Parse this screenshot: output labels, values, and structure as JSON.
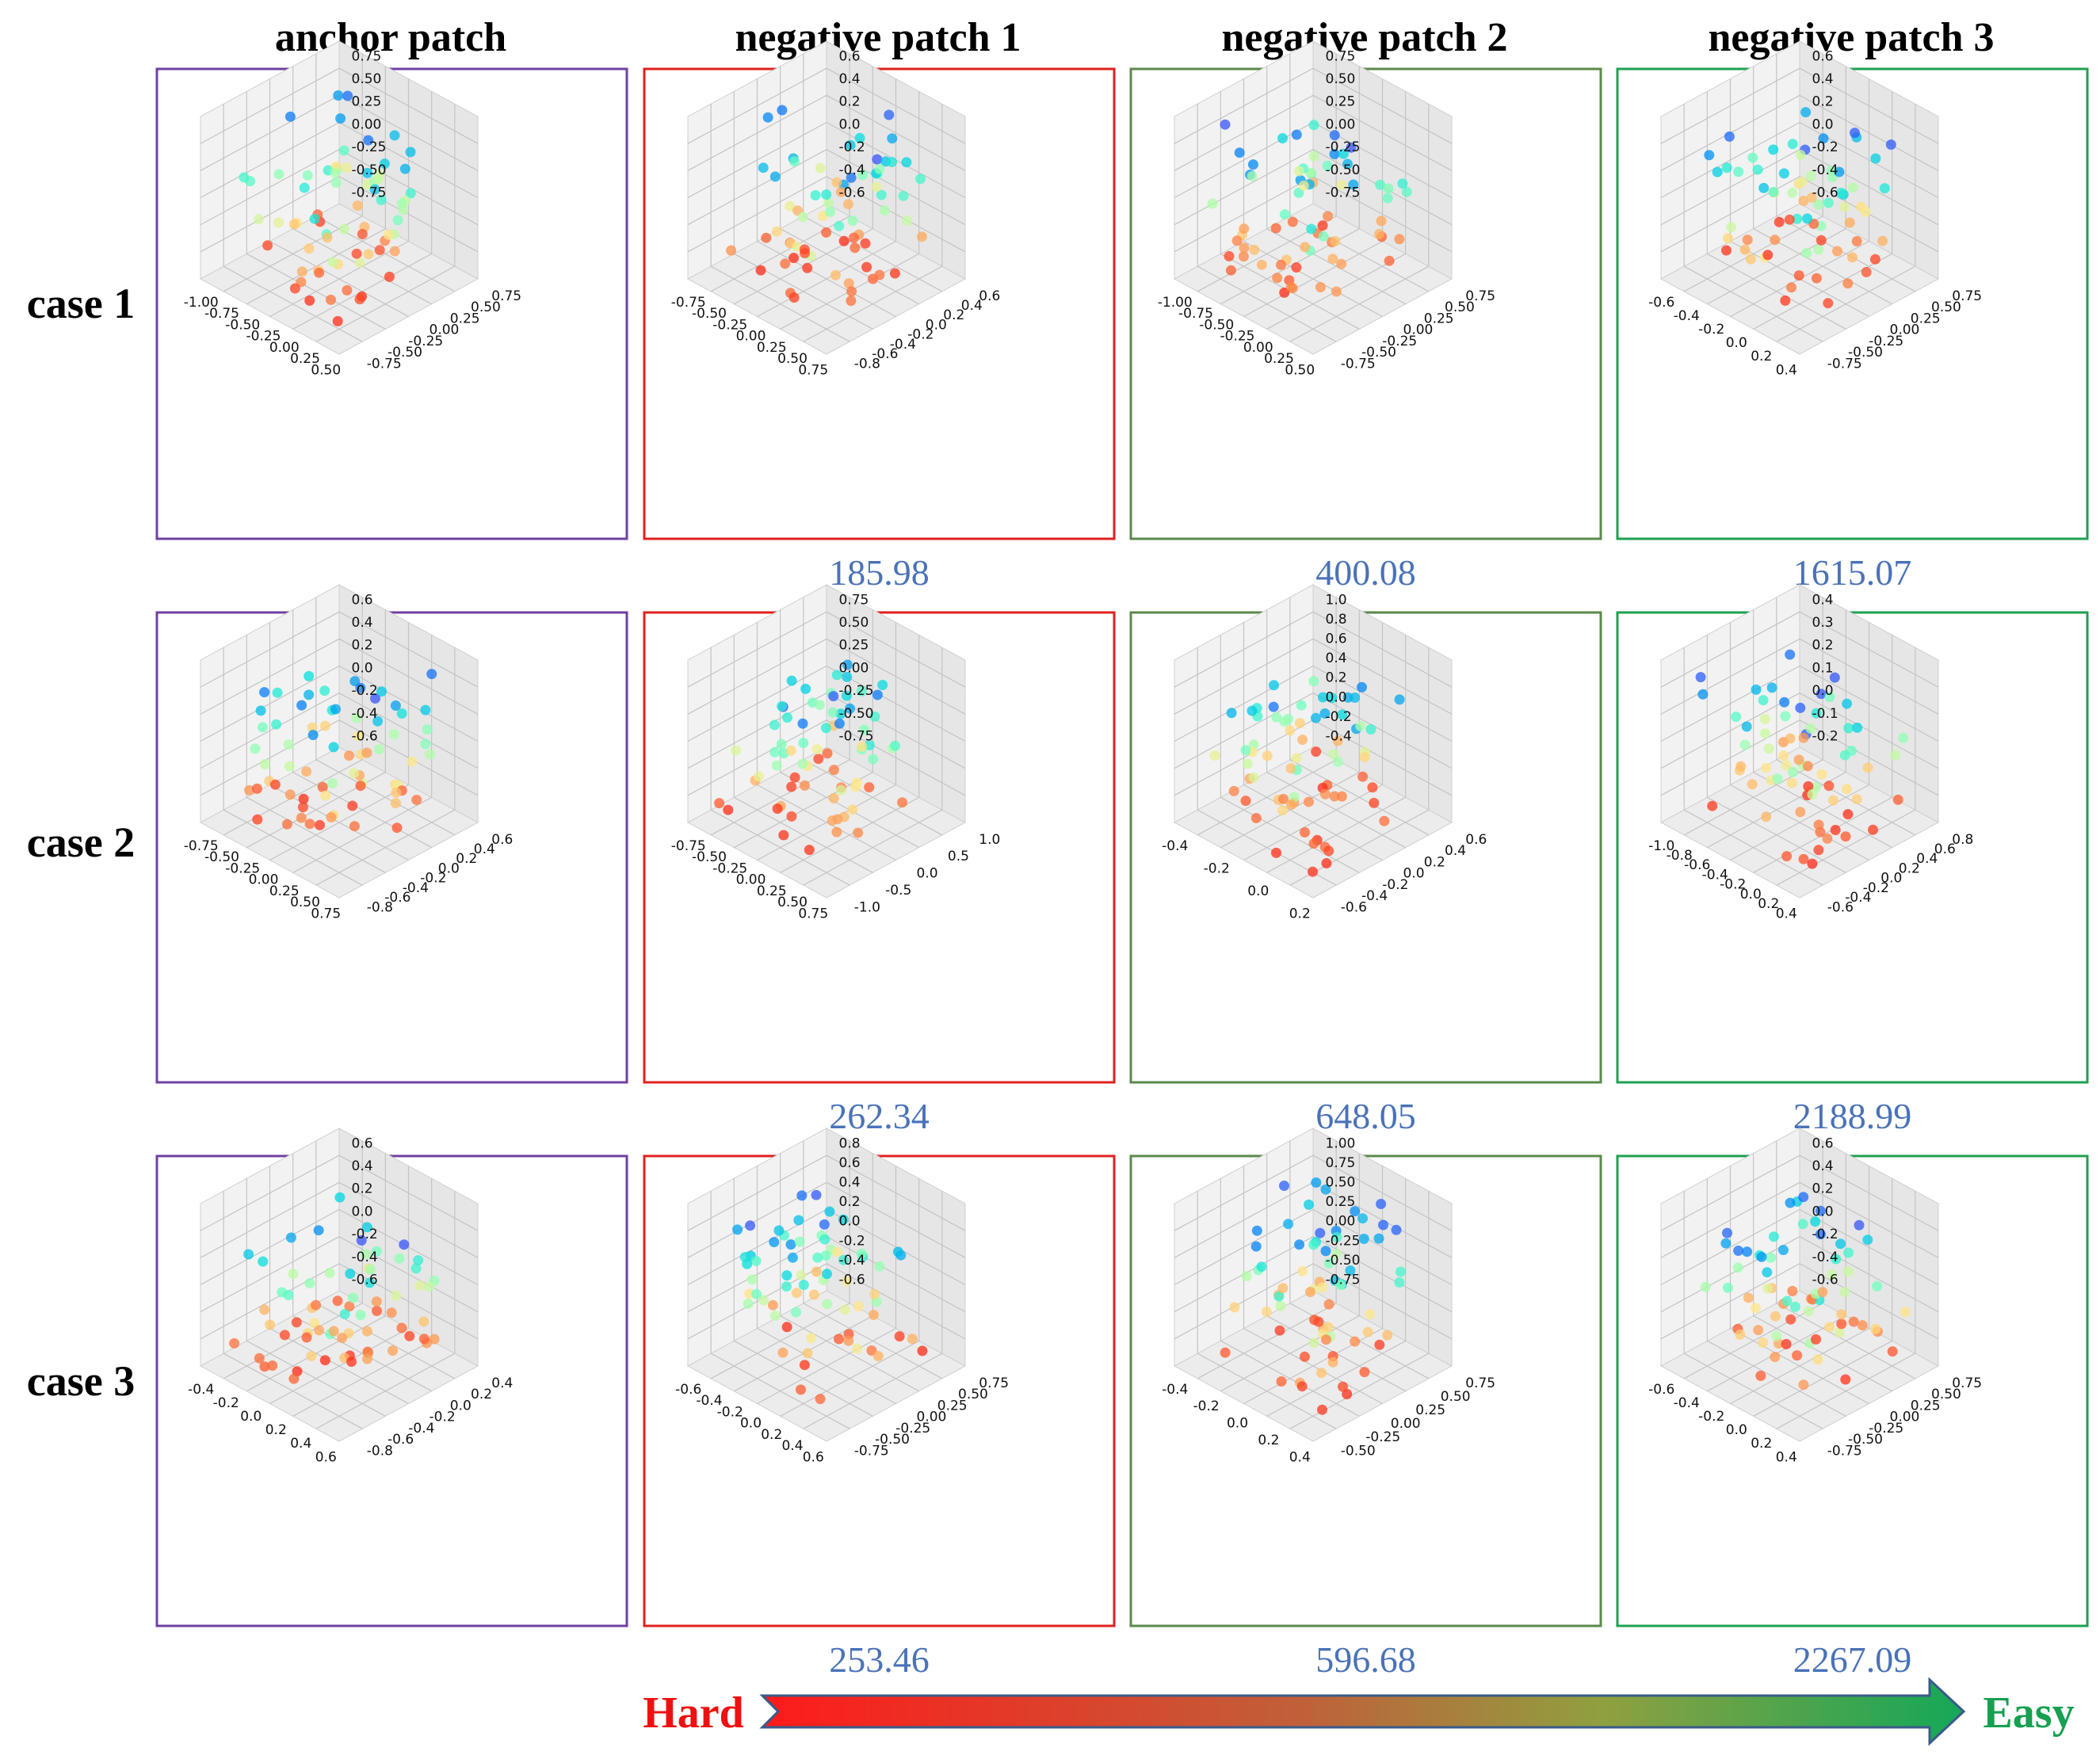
{
  "columns": [
    "anchor patch",
    "negative patch 1",
    "negative patch 2",
    "negative patch 3"
  ],
  "rows": [
    "case 1",
    "case 2",
    "case 3"
  ],
  "border_colors": {
    "anchor": "#7040a0",
    "neg1": "#e02020",
    "neg2": "#5a8a4a",
    "neg3": "#1ea050"
  },
  "arrow": {
    "left_label": "Hard",
    "right_label": "Easy",
    "left_color": "#ee1111",
    "right_color": "#16a050"
  },
  "value_color": "#4a72b8",
  "chart_data": [
    {
      "type": "scatter",
      "row": "case 1",
      "column": "anchor patch",
      "x_ticks": [
        "-1.00",
        "-0.75",
        "-0.50",
        "-0.25",
        "0.00",
        "0.25",
        "0.50"
      ],
      "y_ticks": [
        "-0.75",
        "-0.50",
        "-0.25",
        "0.00",
        "0.25",
        "0.50",
        "0.75"
      ],
      "z_ticks": [
        "-0.75",
        "-0.50",
        "-0.25",
        "0.00",
        "0.25",
        "0.50",
        "0.75"
      ],
      "value": ""
    },
    {
      "type": "scatter",
      "row": "case 1",
      "column": "negative patch 1",
      "x_ticks": [
        "-0.75",
        "-0.50",
        "-0.25",
        "0.00",
        "0.25",
        "0.50",
        "0.75"
      ],
      "y_ticks": [
        "-0.8",
        "-0.6",
        "-0.4",
        "-0.2",
        "0.0",
        "0.2",
        "0.4",
        "0.6"
      ],
      "z_ticks": [
        "-0.6",
        "-0.4",
        "-0.2",
        "0.0",
        "0.2",
        "0.4",
        "0.6"
      ],
      "value": "185.98"
    },
    {
      "type": "scatter",
      "row": "case 1",
      "column": "negative patch 2",
      "x_ticks": [
        "-1.00",
        "-0.75",
        "-0.50",
        "-0.25",
        "0.00",
        "0.25",
        "0.50"
      ],
      "y_ticks": [
        "-0.75",
        "-0.50",
        "-0.25",
        "0.00",
        "0.25",
        "0.50",
        "0.75"
      ],
      "z_ticks": [
        "-0.75",
        "-0.50",
        "-0.25",
        "0.00",
        "0.25",
        "0.50",
        "0.75"
      ],
      "value": "400.08"
    },
    {
      "type": "scatter",
      "row": "case 1",
      "column": "negative patch 3",
      "x_ticks": [
        "-0.6",
        "-0.4",
        "-0.2",
        "0.0",
        "0.2",
        "0.4"
      ],
      "y_ticks": [
        "-0.75",
        "-0.50",
        "-0.25",
        "0.00",
        "0.25",
        "0.50",
        "0.75"
      ],
      "z_ticks": [
        "-0.6",
        "-0.4",
        "-0.2",
        "0.0",
        "0.2",
        "0.4",
        "0.6"
      ],
      "value": "1615.07"
    },
    {
      "type": "scatter",
      "row": "case 2",
      "column": "anchor patch",
      "x_ticks": [
        "-0.75",
        "-0.50",
        "-0.25",
        "0.00",
        "0.25",
        "0.50",
        "0.75"
      ],
      "y_ticks": [
        "-0.8",
        "-0.6",
        "-0.4",
        "-0.2",
        "0.0",
        "0.2",
        "0.4",
        "0.6"
      ],
      "z_ticks": [
        "-0.6",
        "-0.4",
        "-0.2",
        "0.0",
        "0.2",
        "0.4",
        "0.6"
      ],
      "value": ""
    },
    {
      "type": "scatter",
      "row": "case 2",
      "column": "negative patch 1",
      "x_ticks": [
        "-0.75",
        "-0.50",
        "-0.25",
        "0.00",
        "0.25",
        "0.50",
        "0.75"
      ],
      "y_ticks": [
        "-1.0",
        "-0.5",
        "0.0",
        "0.5",
        "1.0"
      ],
      "z_ticks": [
        "-0.75",
        "-0.50",
        "-0.25",
        "0.00",
        "0.25",
        "0.50",
        "0.75"
      ],
      "value": "262.34"
    },
    {
      "type": "scatter",
      "row": "case 2",
      "column": "negative patch 2",
      "x_ticks": [
        "-0.4",
        "-0.2",
        "0.0",
        "0.2"
      ],
      "y_ticks": [
        "-0.6",
        "-0.4",
        "-0.2",
        "0.0",
        "0.2",
        "0.4",
        "0.6"
      ],
      "z_ticks": [
        "-0.4",
        "-0.2",
        "0.0",
        "0.2",
        "0.4",
        "0.6",
        "0.8",
        "1.0"
      ],
      "value": "648.05"
    },
    {
      "type": "scatter",
      "row": "case 2",
      "column": "negative patch 3",
      "x_ticks": [
        "-1.0",
        "-0.8",
        "-0.6",
        "-0.4",
        "-0.2",
        "0.0",
        "0.2",
        "0.4"
      ],
      "y_ticks": [
        "-0.6",
        "-0.4",
        "-0.2",
        "0.0",
        "0.2",
        "0.4",
        "0.6",
        "0.8"
      ],
      "z_ticks": [
        "-0.2",
        "-0.1",
        "0.0",
        "0.1",
        "0.2",
        "0.3",
        "0.4"
      ],
      "value": "2188.99"
    },
    {
      "type": "scatter",
      "row": "case 3",
      "column": "anchor patch",
      "x_ticks": [
        "-0.4",
        "-0.2",
        "0.0",
        "0.2",
        "0.4",
        "0.6"
      ],
      "y_ticks": [
        "-0.8",
        "-0.6",
        "-0.4",
        "-0.2",
        "0.0",
        "0.2",
        "0.4"
      ],
      "z_ticks": [
        "-0.6",
        "-0.4",
        "-0.2",
        "0.0",
        "0.2",
        "0.4",
        "0.6"
      ],
      "value": ""
    },
    {
      "type": "scatter",
      "row": "case 3",
      "column": "negative patch 1",
      "x_ticks": [
        "-0.6",
        "-0.4",
        "-0.2",
        "0.0",
        "0.2",
        "0.4",
        "0.6"
      ],
      "y_ticks": [
        "-0.75",
        "-0.50",
        "-0.25",
        "0.00",
        "0.25",
        "0.50",
        "0.75"
      ],
      "z_ticks": [
        "-0.6",
        "-0.4",
        "-0.2",
        "0.0",
        "0.2",
        "0.4",
        "0.6",
        "0.8"
      ],
      "value": "253.46"
    },
    {
      "type": "scatter",
      "row": "case 3",
      "column": "negative patch 2",
      "x_ticks": [
        "-0.4",
        "-0.2",
        "0.0",
        "0.2",
        "0.4"
      ],
      "y_ticks": [
        "-0.50",
        "-0.25",
        "0.00",
        "0.25",
        "0.50",
        "0.75"
      ],
      "z_ticks": [
        "-0.75",
        "-0.50",
        "-0.25",
        "0.00",
        "0.25",
        "0.50",
        "0.75",
        "1.00"
      ],
      "value": "596.68"
    },
    {
      "type": "scatter",
      "row": "case 3",
      "column": "negative patch 3",
      "x_ticks": [
        "-0.6",
        "-0.4",
        "-0.2",
        "0.0",
        "0.2",
        "0.4"
      ],
      "y_ticks": [
        "-0.75",
        "-0.50",
        "-0.25",
        "0.00",
        "0.25",
        "0.50",
        "0.75"
      ],
      "z_ticks": [
        "-0.6",
        "-0.4",
        "-0.2",
        "0.0",
        "0.2",
        "0.4",
        "0.6"
      ],
      "value": "2267.09"
    }
  ]
}
